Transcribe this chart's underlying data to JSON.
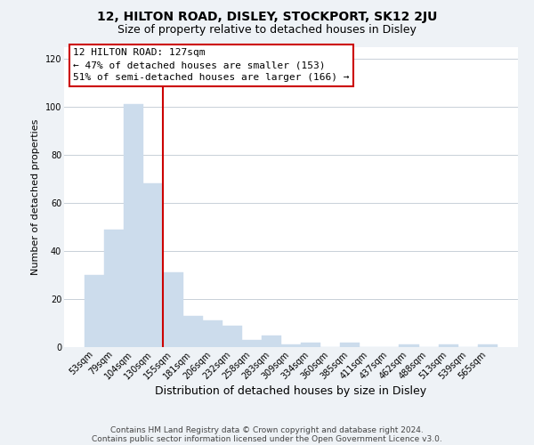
{
  "title_line1": "12, HILTON ROAD, DISLEY, STOCKPORT, SK12 2JU",
  "title_line2": "Size of property relative to detached houses in Disley",
  "xlabel": "Distribution of detached houses by size in Disley",
  "ylabel": "Number of detached properties",
  "bar_color": "#ccdcec",
  "bar_edge_color": "#ccdcec",
  "vline_color": "#cc0000",
  "vline_index": 3,
  "categories": [
    "53sqm",
    "79sqm",
    "104sqm",
    "130sqm",
    "155sqm",
    "181sqm",
    "206sqm",
    "232sqm",
    "258sqm",
    "283sqm",
    "309sqm",
    "334sqm",
    "360sqm",
    "385sqm",
    "411sqm",
    "437sqm",
    "462sqm",
    "488sqm",
    "513sqm",
    "539sqm",
    "565sqm"
  ],
  "values": [
    30,
    49,
    101,
    68,
    31,
    13,
    11,
    9,
    3,
    5,
    1,
    2,
    0,
    2,
    0,
    0,
    1,
    0,
    1,
    0,
    1
  ],
  "ylim": [
    0,
    125
  ],
  "yticks": [
    0,
    20,
    40,
    60,
    80,
    100,
    120
  ],
  "annotation_title": "12 HILTON ROAD: 127sqm",
  "annotation_line1": "← 47% of detached houses are smaller (153)",
  "annotation_line2": "51% of semi-detached houses are larger (166) →",
  "annotation_box_color": "white",
  "annotation_box_edge": "#cc0000",
  "footer_line1": "Contains HM Land Registry data © Crown copyright and database right 2024.",
  "footer_line2": "Contains public sector information licensed under the Open Government Licence v3.0.",
  "background_color": "#eef2f6",
  "plot_bg_color": "white",
  "grid_color": "#c8d0d8",
  "title1_fontsize": 10,
  "title2_fontsize": 9,
  "xlabel_fontsize": 9,
  "ylabel_fontsize": 8,
  "tick_fontsize": 7,
  "ann_fontsize": 8,
  "footer_fontsize": 6.5
}
